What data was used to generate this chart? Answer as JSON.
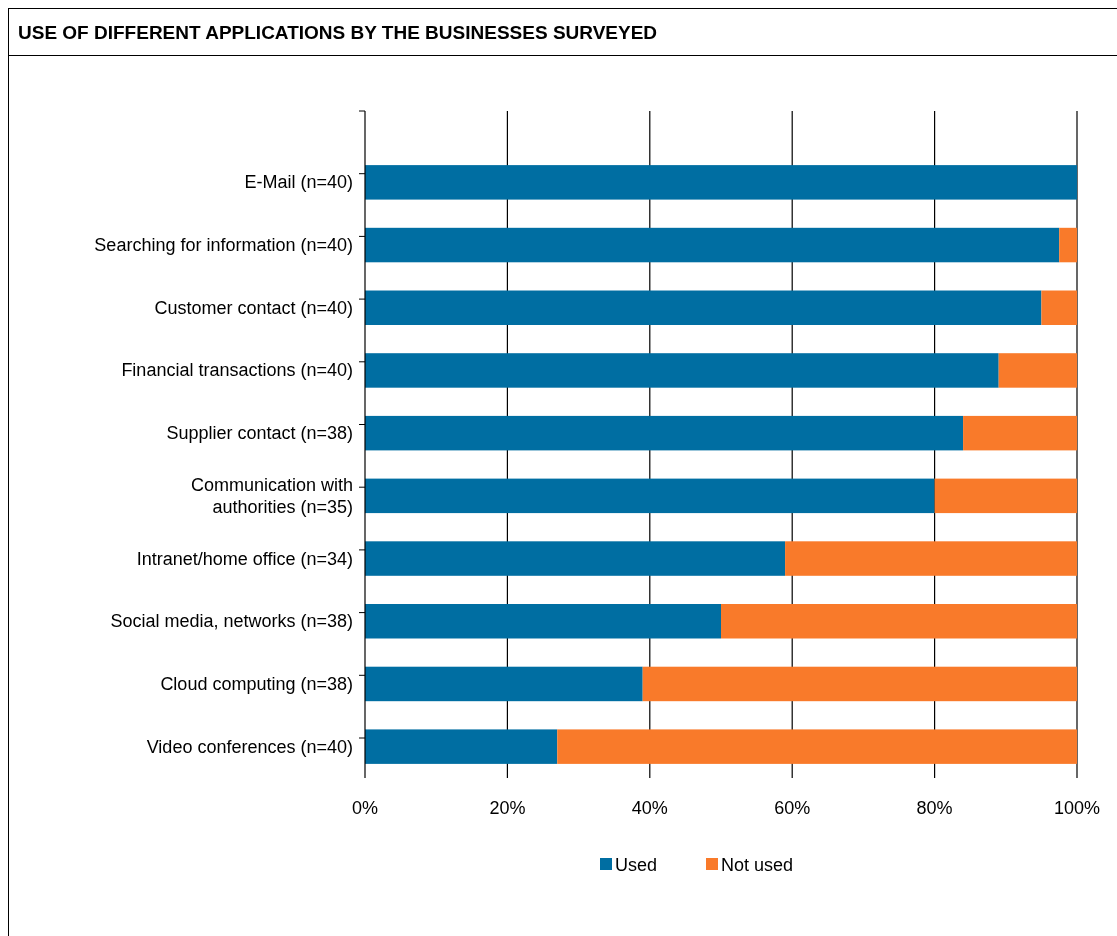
{
  "chart_data": {
    "type": "bar",
    "orientation": "horizontal",
    "stacked": true,
    "title": "USE OF DIFFERENT APPLICATIONS BY THE BUSINESSES SURVEYED",
    "categories": [
      "E-Mail (n=40)",
      "Searching for information (n=40)",
      "Customer contact (n=40)",
      "Financial transactions (n=40)",
      "Supplier contact (n=38)",
      "Communication with\nauthorities (n=35)",
      "Intranet/home office (n=34)",
      "Social media, networks (n=38)",
      "Cloud computing (n=38)",
      "Video conferences (n=40)"
    ],
    "series": [
      {
        "name": "Used",
        "color": "#006ea2",
        "values": [
          100,
          97.5,
          95,
          89,
          84,
          80,
          59,
          50,
          39,
          27
        ]
      },
      {
        "name": "Not used",
        "color": "#f97a2a",
        "values": [
          0,
          2.5,
          5,
          11,
          16,
          20,
          41,
          50,
          61,
          73
        ]
      }
    ],
    "xlim": [
      0,
      100
    ],
    "xticks": [
      {
        "value": 0,
        "label": "0%"
      },
      {
        "value": 20,
        "label": "20%"
      },
      {
        "value": 40,
        "label": "40%"
      },
      {
        "value": 60,
        "label": "60%"
      },
      {
        "value": 80,
        "label": "80%"
      },
      {
        "value": 100,
        "label": "100%"
      }
    ],
    "grid": "x",
    "legend": "bottom"
  }
}
